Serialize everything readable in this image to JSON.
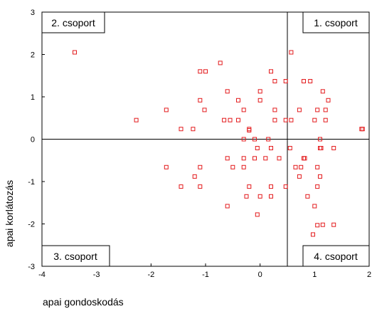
{
  "chart_data": {
    "type": "scatter",
    "title": "",
    "xlabel": "apai gondoskodás",
    "ylabel": "apai korlátozás",
    "xlim": [
      -4,
      2
    ],
    "ylim": [
      -3,
      3
    ],
    "xticks": [
      "-4",
      "-3",
      "-2",
      "-1",
      "0",
      "1",
      "2"
    ],
    "yticks": [
      "3",
      "2",
      "1",
      "0",
      "-1",
      "-2",
      "-3"
    ],
    "reference_lines": {
      "x": 0.5,
      "y": 0
    },
    "quadrant_labels": [
      "2. csoport",
      "1. csoport",
      "3. csoport",
      "4. csoport"
    ],
    "marker": {
      "shape": "hollow-square",
      "color": "#e31a1c"
    },
    "points": [
      [
        -3.4,
        2.05
      ],
      [
        -2.27,
        0.45
      ],
      [
        -1.72,
        0.69
      ],
      [
        -1.45,
        0.24
      ],
      [
        -1.23,
        0.24
      ],
      [
        -1.1,
        1.6
      ],
      [
        -1.0,
        1.6
      ],
      [
        -1.1,
        0.92
      ],
      [
        -1.02,
        0.69
      ],
      [
        -0.73,
        1.8
      ],
      [
        -0.6,
        1.13
      ],
      [
        -0.66,
        0.45
      ],
      [
        -0.55,
        0.45
      ],
      [
        -0.4,
        0.45
      ],
      [
        -0.4,
        0.92
      ],
      [
        -0.3,
        0.69
      ],
      [
        -0.2,
        0.24
      ],
      [
        -0.2,
        0.21
      ],
      [
        -0.1,
        0.0
      ],
      [
        -0.3,
        0.0
      ],
      [
        0.0,
        1.13
      ],
      [
        0.0,
        0.92
      ],
      [
        0.2,
        1.6
      ],
      [
        0.27,
        1.37
      ],
      [
        0.47,
        1.37
      ],
      [
        0.57,
        2.05
      ],
      [
        0.8,
        1.37
      ],
      [
        0.92,
        1.37
      ],
      [
        1.15,
        1.13
      ],
      [
        1.25,
        0.92
      ],
      [
        1.05,
        0.69
      ],
      [
        0.72,
        0.69
      ],
      [
        0.27,
        0.69
      ],
      [
        0.27,
        0.45
      ],
      [
        0.47,
        0.45
      ],
      [
        0.57,
        0.45
      ],
      [
        1.0,
        0.45
      ],
      [
        1.2,
        0.45
      ],
      [
        1.2,
        0.69
      ],
      [
        1.86,
        0.24
      ],
      [
        1.88,
        0.24
      ],
      [
        0.15,
        0.0
      ],
      [
        1.1,
        0.0
      ],
      [
        -0.05,
        -0.21
      ],
      [
        0.2,
        -0.21
      ],
      [
        0.55,
        -0.21
      ],
      [
        1.1,
        -0.21
      ],
      [
        1.12,
        -0.21
      ],
      [
        1.35,
        -0.21
      ],
      [
        -0.6,
        -0.45
      ],
      [
        -0.5,
        -0.66
      ],
      [
        -0.3,
        -0.45
      ],
      [
        -0.3,
        -0.66
      ],
      [
        -0.1,
        -0.45
      ],
      [
        0.1,
        -0.45
      ],
      [
        0.35,
        -0.45
      ],
      [
        0.65,
        -0.66
      ],
      [
        0.75,
        -0.66
      ],
      [
        0.8,
        -0.45
      ],
      [
        0.82,
        -0.45
      ],
      [
        0.72,
        -0.88
      ],
      [
        1.05,
        -0.66
      ],
      [
        1.1,
        -0.88
      ],
      [
        -1.72,
        -0.66
      ],
      [
        -1.1,
        -0.66
      ],
      [
        -1.2,
        -0.88
      ],
      [
        -1.45,
        -1.12
      ],
      [
        -1.1,
        -1.12
      ],
      [
        -0.6,
        -1.58
      ],
      [
        -0.2,
        -1.12
      ],
      [
        -0.25,
        -1.35
      ],
      [
        -0.05,
        -1.78
      ],
      [
        0.0,
        -1.35
      ],
      [
        0.2,
        -1.12
      ],
      [
        0.2,
        -1.35
      ],
      [
        0.47,
        -1.12
      ],
      [
        0.87,
        -1.35
      ],
      [
        1.0,
        -1.58
      ],
      [
        1.05,
        -1.12
      ],
      [
        1.15,
        -2.02
      ],
      [
        1.35,
        -2.02
      ],
      [
        0.97,
        -2.25
      ],
      [
        1.05,
        -2.03
      ]
    ]
  }
}
